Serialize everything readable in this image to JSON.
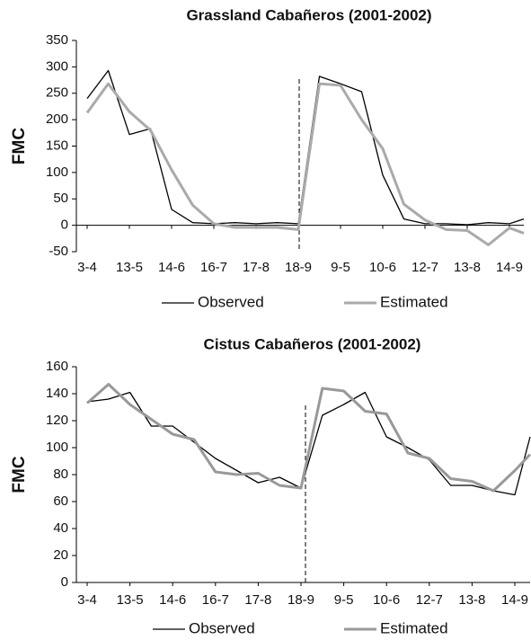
{
  "chart_data": [
    {
      "type": "line",
      "title": "Grassland Cabañeros (2001-2002)",
      "ylabel": "FMC",
      "categories": [
        "3-4",
        null,
        "13-5",
        null,
        "14-6",
        null,
        "16-7",
        null,
        "17-8",
        null,
        "18-9",
        null,
        "9-5",
        null,
        "10-6",
        null,
        "12-7",
        null,
        "13-8",
        null,
        "14-9",
        null
      ],
      "series": [
        {
          "name": "Observed",
          "color": "#000000",
          "values": [
            240,
            293,
            172,
            183,
            30,
            5,
            3,
            5,
            3,
            5,
            3,
            282,
            268,
            253,
            95,
            12,
            3,
            3,
            1,
            5,
            3,
            12
          ]
        },
        {
          "name": "Estimated",
          "color": "#aaaaaa",
          "values": [
            213,
            268,
            215,
            180,
            105,
            38,
            3,
            -4,
            -4,
            -4,
            -8,
            268,
            265,
            200,
            145,
            40,
            10,
            -8,
            -10,
            -37,
            -5,
            -15
          ]
        }
      ],
      "ylim": [
        -50,
        350
      ],
      "yticks": [
        -50,
        0,
        50,
        100,
        150,
        200,
        250,
        300,
        350
      ],
      "grid": false
    },
    {
      "type": "line",
      "title": "Cistus Cabañeros (2001-2002)",
      "ylabel": "FMC",
      "categories": [
        "3-4",
        null,
        "13-5",
        null,
        "14-6",
        null,
        "16-7",
        null,
        "17-8",
        null,
        "18-9",
        null,
        "9-5",
        null,
        "10-6",
        null,
        "12-7",
        null,
        "13-8",
        null,
        "14-9",
        null
      ],
      "series": [
        {
          "name": "Observed",
          "color": "#000000",
          "values": [
            134,
            136,
            141,
            116,
            116,
            104,
            92,
            83,
            74,
            78,
            70,
            124,
            132,
            141,
            108,
            100,
            91,
            72,
            72,
            68,
            65,
            108
          ]
        },
        {
          "name": "Estimated",
          "color": "#999999",
          "values": [
            133,
            147,
            132,
            121,
            110,
            106,
            82,
            80,
            81,
            72,
            70,
            144,
            142,
            127,
            125,
            96,
            92,
            77,
            75,
            68,
            83,
            95
          ]
        }
      ],
      "ylim": [
        0,
        160
      ],
      "yticks": [
        0,
        20,
        40,
        60,
        80,
        100,
        120,
        140,
        160
      ],
      "grid": false
    }
  ]
}
